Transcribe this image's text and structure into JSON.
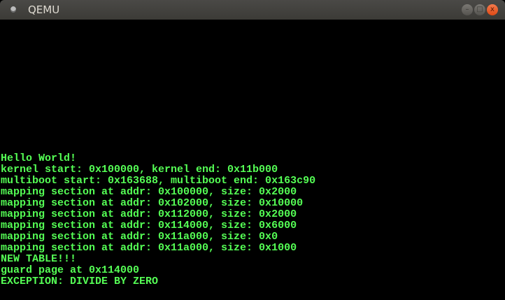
{
  "window": {
    "title": "QEMU",
    "buttons": {
      "minimize": "–",
      "maximize": "□",
      "close": "x"
    }
  },
  "colors": {
    "console_text": "#55ff55",
    "background": "#000000",
    "close_button": "#e5531c"
  },
  "console": {
    "lines": [
      "Hello World!",
      "kernel start: 0x100000, kernel end: 0x11b000",
      "multiboot start: 0x163688, multiboot end: 0x163c90",
      "mapping section at addr: 0x100000, size: 0x2000",
      "mapping section at addr: 0x102000, size: 0x10000",
      "mapping section at addr: 0x112000, size: 0x2000",
      "mapping section at addr: 0x114000, size: 0x6000",
      "mapping section at addr: 0x11a000, size: 0x0",
      "mapping section at addr: 0x11a000, size: 0x1000",
      "NEW TABLE!!!",
      "guard page at 0x114000",
      "EXCEPTION: DIVIDE BY ZERO"
    ]
  }
}
